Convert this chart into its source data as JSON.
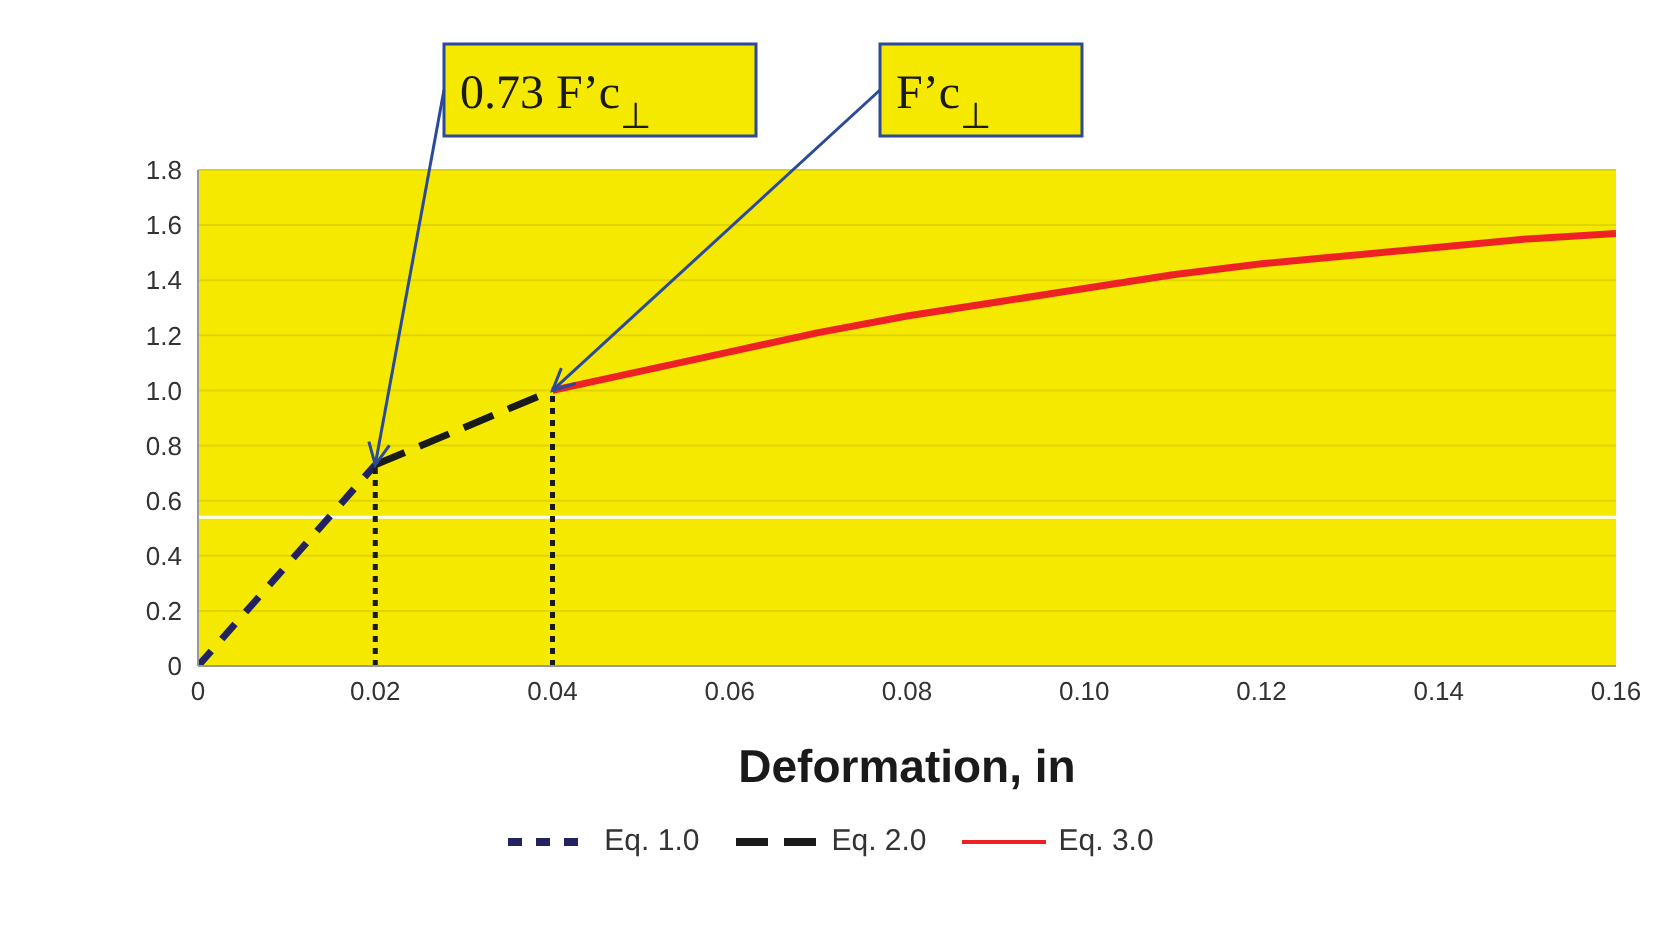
{
  "chart_data": {
    "type": "line",
    "xlabel": "Deformation, in",
    "xlim": [
      0,
      0.16
    ],
    "xticks": [
      0,
      0.02,
      0.04,
      0.06,
      0.08,
      {
        "value": 0.1,
        "label": "0.10"
      },
      0.12,
      0.14,
      0.16
    ],
    "ylim": [
      0,
      1.8
    ],
    "yticks": [
      0,
      0.2,
      0.4,
      0.6,
      0.8,
      {
        "value": 1,
        "label": "1.0"
      },
      1.2,
      1.4,
      1.6,
      1.8
    ],
    "grid": "y",
    "legend": "bottom",
    "series": [
      {
        "name": "Eq. 1.0",
        "color": "#22225e",
        "line_style": "dashed",
        "x": [
          0,
          0.02
        ],
        "values": [
          0,
          0.73
        ]
      },
      {
        "name": "Eq. 2.0",
        "color": "#1a1a1a",
        "line_style": "dashed",
        "x": [
          0.02,
          0.04
        ],
        "values": [
          0.73,
          1.0
        ]
      },
      {
        "name": "Eq. 3.0",
        "color": "#ee2222",
        "line_style": "solid",
        "x": [
          0.04,
          0.05,
          0.06,
          0.07,
          0.08,
          0.09,
          0.1,
          0.11,
          0.12,
          0.13,
          0.14,
          0.15,
          0.16
        ],
        "values": [
          1.0,
          1.07,
          1.14,
          1.21,
          1.27,
          1.32,
          1.37,
          1.42,
          1.46,
          1.49,
          1.52,
          1.55,
          1.57
        ]
      },
      {
        "color": "#1a1a1a",
        "line_style": "dotted",
        "x": [
          0.02,
          0.02
        ],
        "values": [
          0,
          0.73
        ]
      },
      {
        "color": "#1a1a1a",
        "line_style": "dotted",
        "x": [
          0.04,
          0.04
        ],
        "values": [
          0,
          1.0
        ]
      }
    ],
    "ref_lines": [
      {
        "axis": "y",
        "value": 0.54,
        "color": "#ffffff"
      }
    ],
    "annotations": [
      {
        "text": "0.73 F’c$_{⊥}$",
        "x": 0.02,
        "y": 0.73
      },
      {
        "text": "F’c$_{⊥}$",
        "x": 0.04,
        "y": 1.0
      }
    ]
  }
}
